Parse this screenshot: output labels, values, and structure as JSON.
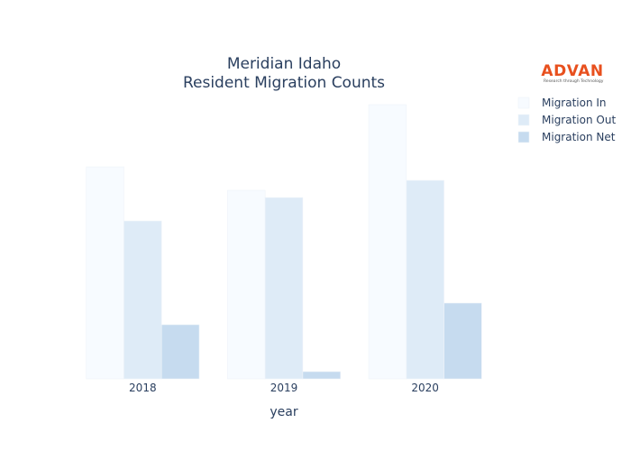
{
  "chart_data": {
    "type": "bar",
    "title": "Meridian Idaho",
    "subtitle": "Resident Migration Counts",
    "xlabel": "year",
    "ylabel": "",
    "categories": [
      "2018",
      "2019",
      "2020"
    ],
    "series": [
      {
        "name": "Migration In",
        "values": [
          235,
          209,
          304
        ],
        "color": "#f7fbff"
      },
      {
        "name": "Migration Out",
        "values": [
          175,
          201,
          220
        ],
        "color": "#deebf7"
      },
      {
        "name": "Migration Net",
        "values": [
          60,
          8,
          84
        ],
        "color": "#c6dbef"
      }
    ],
    "ylim": [
      0,
      320
    ],
    "grid": false,
    "yaxis_visible": false,
    "legend_position": "top-right"
  },
  "logo": {
    "name": "ADVAN",
    "tagline": "Research through Technology"
  }
}
